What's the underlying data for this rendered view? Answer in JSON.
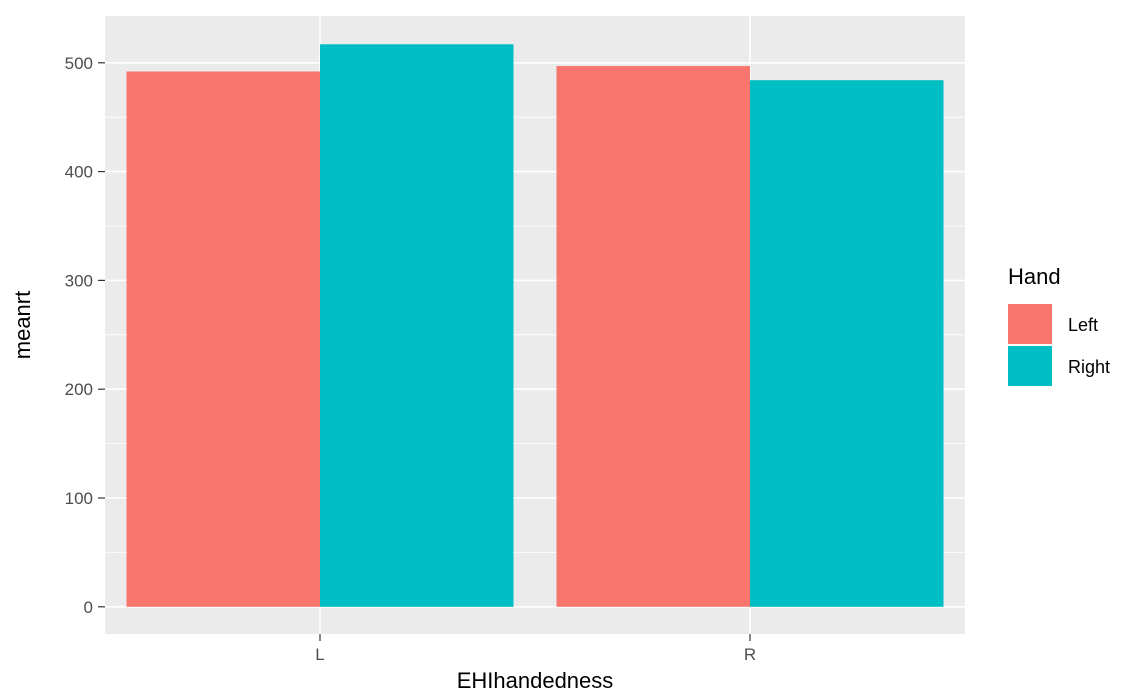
{
  "chart_data": {
    "type": "bar",
    "title": "",
    "xlabel": "EHIhandedness",
    "ylabel": "meanrt",
    "categories": [
      "L",
      "R"
    ],
    "series": [
      {
        "name": "Left",
        "values": [
          492,
          497
        ],
        "color": "#F8766D"
      },
      {
        "name": "Right",
        "values": [
          517,
          484
        ],
        "color": "#00BFC4"
      }
    ],
    "ylim": [
      -25,
      543
    ],
    "yticks": [
      0,
      100,
      200,
      300,
      400,
      500
    ],
    "grid": true,
    "legend": {
      "title": "Hand",
      "position": "right"
    },
    "colors": {
      "panel": "#EBEBEB",
      "grid": "#FFFFFF",
      "tick_text": "#4D4D4D"
    }
  }
}
